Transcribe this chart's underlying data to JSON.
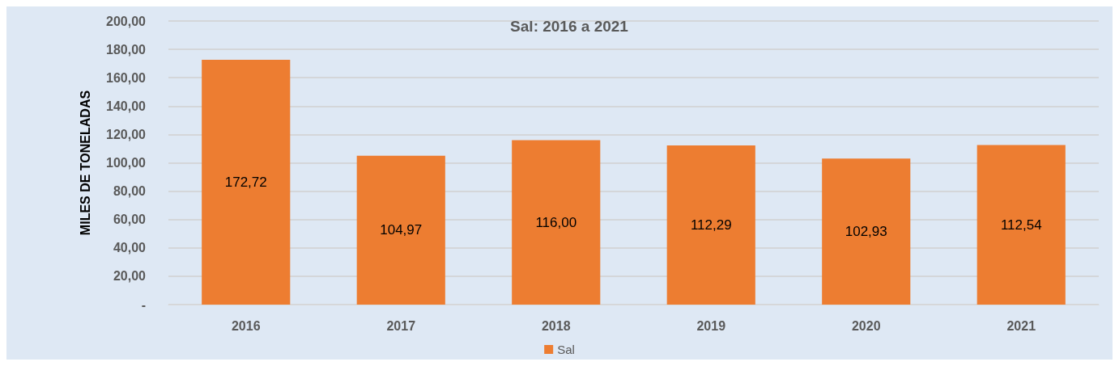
{
  "chart_data": {
    "type": "bar",
    "title": "Sal: 2016 a 2021",
    "ylabel": "MILES DE TONELADAS",
    "categories": [
      "2016",
      "2017",
      "2018",
      "2019",
      "2020",
      "2021"
    ],
    "series": [
      {
        "name": "Sal",
        "color": "#ed7d31",
        "values": [
          172.72,
          104.97,
          116.0,
          112.29,
          102.93,
          112.54
        ],
        "value_labels": [
          "172,72",
          "104,97",
          "116,00",
          "112,29",
          "102,93",
          "112,54"
        ]
      }
    ],
    "ylim": [
      0,
      200
    ],
    "yticks": [
      {
        "value": 0,
        "label": "-"
      },
      {
        "value": 20,
        "label": "20,00"
      },
      {
        "value": 40,
        "label": "40,00"
      },
      {
        "value": 60,
        "label": "60,00"
      },
      {
        "value": 80,
        "label": "80,00"
      },
      {
        "value": 100,
        "label": "100,00"
      },
      {
        "value": 120,
        "label": "120,00"
      },
      {
        "value": 140,
        "label": "140,00"
      },
      {
        "value": 160,
        "label": "160,00"
      },
      {
        "value": 180,
        "label": "180,00"
      },
      {
        "value": 200,
        "label": "200,00"
      }
    ],
    "grid": "y",
    "legend": "bottom"
  }
}
